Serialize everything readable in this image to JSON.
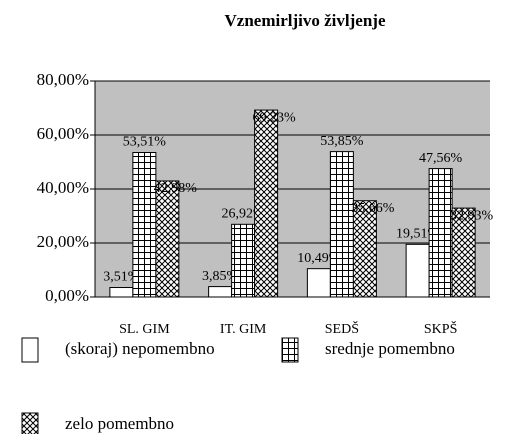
{
  "chart_data": {
    "type": "bar",
    "title": "Vznemirljivo življenje",
    "categories": [
      "SL. GIM",
      "IT. GIM",
      "SEDŠ",
      "SKPŠ"
    ],
    "series": [
      {
        "name": "(skoraj) nepomembno",
        "color": "#ffffff",
        "pattern": "none",
        "values": [
          3.51,
          3.85,
          10.49,
          19.51
        ],
        "value_labels": [
          "3,51%",
          "3,85%",
          "10,49%",
          "19,51%"
        ]
      },
      {
        "name": "srednje pomembno",
        "color": "#ffffff",
        "pattern": "grid",
        "values": [
          53.51,
          26.92,
          53.85,
          47.56
        ],
        "value_labels": [
          "53,51%",
          "26,92%",
          "53,85%",
          "47,56%"
        ]
      },
      {
        "name": "zelo pomembno",
        "color": "#ffffff",
        "pattern": "crosshatch",
        "values": [
          42.98,
          69.23,
          35.66,
          32.93
        ],
        "value_labels": [
          "42,98%",
          "69,23%",
          "35,66%",
          "32,93%"
        ]
      }
    ],
    "ylim": [
      0,
      80
    ],
    "yticks": [
      {
        "value": 0,
        "label": "0,00%"
      },
      {
        "value": 20,
        "label": "20,00%"
      },
      {
        "value": 40,
        "label": "40,00%"
      },
      {
        "value": 60,
        "label": "60,00%"
      },
      {
        "value": 80,
        "label": "80,00%"
      }
    ],
    "grid": true,
    "plot_background": "#c0c0c0"
  }
}
